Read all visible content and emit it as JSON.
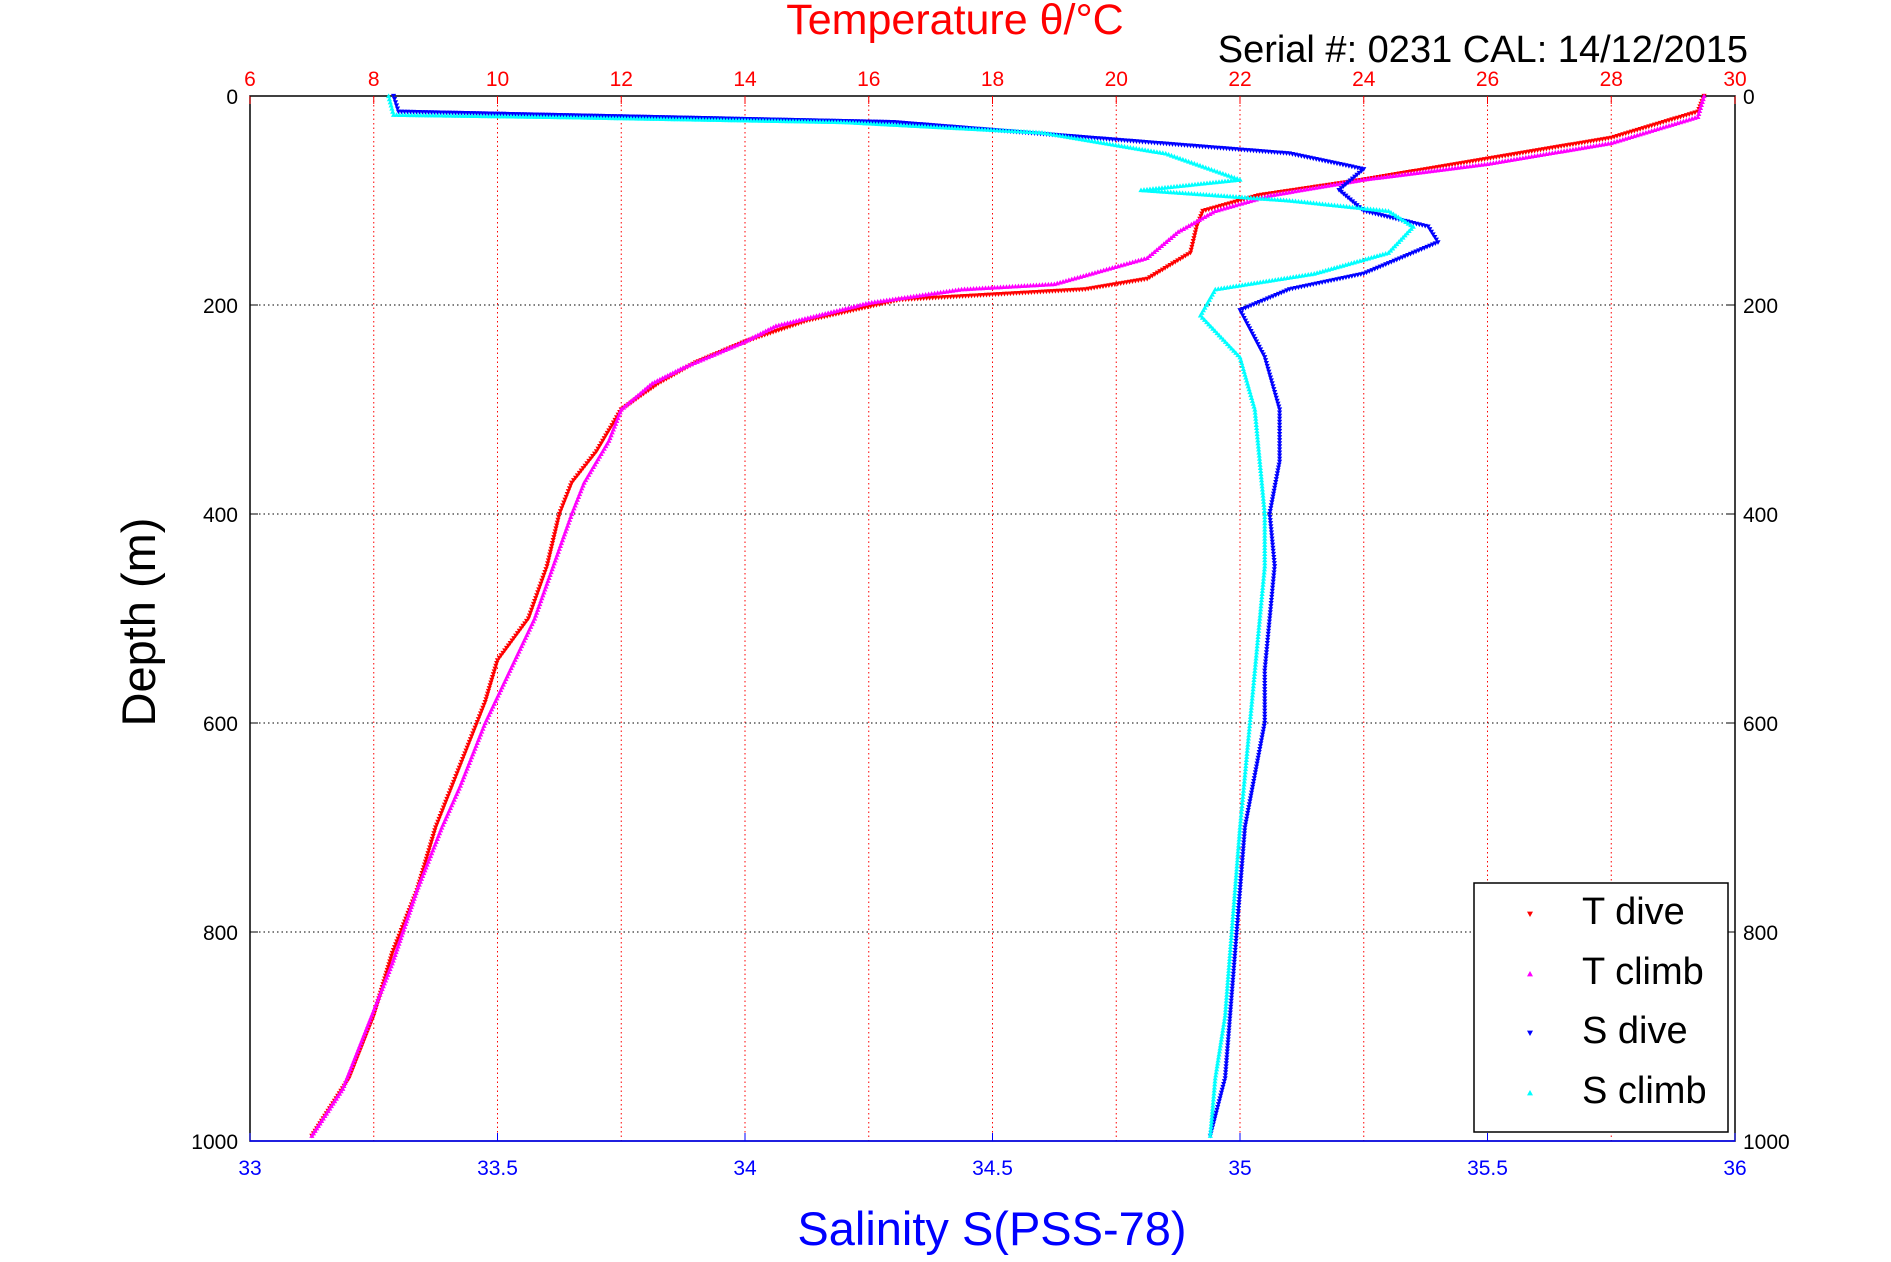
{
  "chart_data": {
    "type": "scatter",
    "title": "Temperature θ/°C",
    "subtitle": "Serial #: 0231  CAL: 14/12/2015",
    "ylabel": "Depth (m)",
    "xlabel_bottom": "Salinity S(PSS-78)",
    "ylim": [
      0,
      1000
    ],
    "y_reversed": true,
    "y_ticks": [
      "0",
      "200",
      "400",
      "600",
      "800",
      "1000"
    ],
    "x_top": {
      "range": [
        6,
        30
      ],
      "ticks": [
        "6",
        "8",
        "10",
        "12",
        "14",
        "16",
        "18",
        "20",
        "22",
        "24",
        "26",
        "28",
        "30"
      ],
      "color": "#ff0000"
    },
    "x_bottom": {
      "range": [
        33,
        36
      ],
      "ticks": [
        "33",
        "33.5",
        "34",
        "34.5",
        "35",
        "35.5",
        "36"
      ],
      "color": "#0000ff"
    },
    "grid": true,
    "legend_position": "bottom-right",
    "series": [
      {
        "name": "T dive",
        "axis": "top",
        "color": "#ff0000",
        "marker": "triangle-down",
        "points": [
          [
            29.5,
            0
          ],
          [
            29.4,
            15
          ],
          [
            28,
            40
          ],
          [
            26,
            60
          ],
          [
            24,
            80
          ],
          [
            22.3,
            95
          ],
          [
            21.4,
            110
          ],
          [
            21.3,
            125
          ],
          [
            21.2,
            150
          ],
          [
            20.5,
            175
          ],
          [
            19.5,
            185
          ],
          [
            18,
            190
          ],
          [
            16.5,
            195
          ],
          [
            15,
            215
          ],
          [
            14,
            235
          ],
          [
            13.2,
            255
          ],
          [
            12.6,
            275
          ],
          [
            12,
            300
          ],
          [
            11.6,
            340
          ],
          [
            11.2,
            370
          ],
          [
            11,
            400
          ],
          [
            10.8,
            450
          ],
          [
            10.5,
            500
          ],
          [
            10,
            540
          ],
          [
            9.8,
            580
          ],
          [
            9.4,
            640
          ],
          [
            9.0,
            700
          ],
          [
            8.7,
            760
          ],
          [
            8.3,
            820
          ],
          [
            8.0,
            880
          ],
          [
            7.6,
            940
          ],
          [
            7.0,
            995
          ]
        ]
      },
      {
        "name": "T climb",
        "axis": "top",
        "color": "#ff00ff",
        "marker": "triangle-up",
        "points": [
          [
            29.5,
            0
          ],
          [
            29.4,
            20
          ],
          [
            28,
            45
          ],
          [
            26,
            65
          ],
          [
            24,
            80
          ],
          [
            22.5,
            95
          ],
          [
            21.6,
            110
          ],
          [
            21.0,
            130
          ],
          [
            20.5,
            155
          ],
          [
            19,
            180
          ],
          [
            17.5,
            185
          ],
          [
            16,
            198
          ],
          [
            14.5,
            220
          ],
          [
            14,
            235
          ],
          [
            13,
            260
          ],
          [
            12.5,
            275
          ],
          [
            12,
            300
          ],
          [
            11.8,
            330
          ],
          [
            11.4,
            370
          ],
          [
            11.2,
            400
          ],
          [
            10.9,
            450
          ],
          [
            10.6,
            500
          ],
          [
            10.2,
            550
          ],
          [
            9.8,
            600
          ],
          [
            9.4,
            660
          ],
          [
            9.1,
            700
          ],
          [
            8.7,
            760
          ],
          [
            8.3,
            830
          ],
          [
            7.9,
            890
          ],
          [
            7.5,
            950
          ],
          [
            7.0,
            995
          ]
        ]
      },
      {
        "name": "S dive",
        "axis": "bottom",
        "color": "#0000ff",
        "marker": "triangle-down",
        "points": [
          [
            33.29,
            0
          ],
          [
            33.3,
            15
          ],
          [
            34.3,
            25
          ],
          [
            34.7,
            40
          ],
          [
            35.1,
            55
          ],
          [
            35.25,
            70
          ],
          [
            35.2,
            90
          ],
          [
            35.25,
            110
          ],
          [
            35.38,
            125
          ],
          [
            35.4,
            140
          ],
          [
            35.25,
            170
          ],
          [
            35.1,
            185
          ],
          [
            35.0,
            205
          ],
          [
            35.05,
            250
          ],
          [
            35.08,
            300
          ],
          [
            35.08,
            350
          ],
          [
            35.06,
            400
          ],
          [
            35.07,
            450
          ],
          [
            35.06,
            500
          ],
          [
            35.05,
            550
          ],
          [
            35.05,
            600
          ],
          [
            35.03,
            650
          ],
          [
            35.01,
            700
          ],
          [
            35.0,
            760
          ],
          [
            34.99,
            820
          ],
          [
            34.98,
            880
          ],
          [
            34.97,
            940
          ],
          [
            34.94,
            995
          ]
        ]
      },
      {
        "name": "S climb",
        "axis": "bottom",
        "color": "#00ffff",
        "marker": "triangle-up",
        "points": [
          [
            33.28,
            0
          ],
          [
            33.29,
            18
          ],
          [
            33.6,
            20
          ],
          [
            34.2,
            25
          ],
          [
            34.6,
            35
          ],
          [
            34.85,
            55
          ],
          [
            35.0,
            80
          ],
          [
            34.8,
            90
          ],
          [
            35.1,
            100
          ],
          [
            35.3,
            110
          ],
          [
            35.35,
            125
          ],
          [
            35.3,
            150
          ],
          [
            35.15,
            170
          ],
          [
            34.95,
            185
          ],
          [
            34.92,
            210
          ],
          [
            35.0,
            250
          ],
          [
            35.03,
            300
          ],
          [
            35.04,
            350
          ],
          [
            35.05,
            400
          ],
          [
            35.05,
            450
          ],
          [
            35.04,
            500
          ],
          [
            35.03,
            550
          ],
          [
            35.02,
            600
          ],
          [
            35.01,
            650
          ],
          [
            35.0,
            700
          ],
          [
            34.99,
            760
          ],
          [
            34.98,
            820
          ],
          [
            34.97,
            880
          ],
          [
            34.95,
            940
          ],
          [
            34.94,
            995
          ]
        ]
      }
    ]
  }
}
